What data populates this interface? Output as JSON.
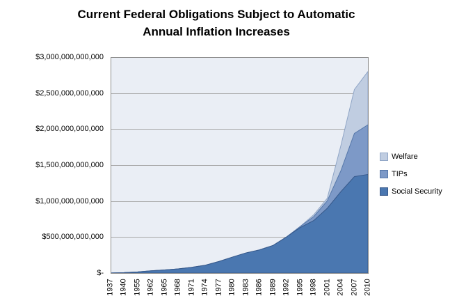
{
  "title": {
    "line1": "Current Federal Obligations Subject to  Automatic",
    "line2": "Annual Inflation Increases"
  },
  "colors": {
    "plot_background": "#EAEEF5",
    "gridline": "#A6A6A6",
    "plot_border": "#8C8C8C",
    "text": "#000000",
    "page_background": "#FFFFFF"
  },
  "chart_data": {
    "type": "area",
    "stacked": true,
    "title": "Current Federal Obligations Subject to  Automatic Annual Inflation Increases",
    "values_unit": "billions of USD",
    "categories": [
      "1937",
      "1940",
      "1955",
      "1962",
      "1965",
      "1968",
      "1971",
      "1974",
      "1977",
      "1980",
      "1983",
      "1986",
      "1989",
      "1992",
      "1995",
      "1998",
      "2001",
      "2004",
      "2007",
      "2010"
    ],
    "series": [
      {
        "name": "Social Security",
        "fill": "#4A77B0",
        "border": "#36588A",
        "values_billions": [
          1,
          6,
          16,
          32,
          44,
          58,
          80,
          109,
          161,
          222,
          280,
          322,
          384,
          503,
          632,
          730,
          900,
          1130,
          1340,
          1370
        ]
      },
      {
        "name": "TIPs",
        "fill": "#7D99C7",
        "border": "#5577A9",
        "values_billions": [
          0,
          0,
          0,
          0,
          0,
          0,
          0,
          0,
          0,
          0,
          0,
          0,
          0,
          0,
          15,
          55,
          105,
          290,
          600,
          690
        ]
      },
      {
        "name": "Welfare",
        "fill": "#C0CDE1",
        "border": "#8FA5C6",
        "values_billions": [
          0,
          0,
          0,
          0,
          0,
          0,
          0,
          0,
          0,
          0,
          0,
          0,
          0,
          0,
          0,
          25,
          35,
          350,
          610,
          740
        ]
      }
    ],
    "y_axis": {
      "min_billions": 0,
      "max_billions": 3000,
      "tick_interval_billions": 500,
      "tick_labels_bottom_to_top": [
        "$-",
        "$500,000,000,000",
        "$1,000,000,000,000",
        "$1,500,000,000,000",
        "$2,000,000,000,000",
        "$2,500,000,000,000",
        "$3,000,000,000,000"
      ]
    },
    "x_axis": {
      "label_rotation_degrees": -90
    },
    "legend": {
      "position": "right",
      "entries": [
        "Welfare",
        "TIPs",
        "Social Security"
      ]
    },
    "grid": "horizontal"
  }
}
